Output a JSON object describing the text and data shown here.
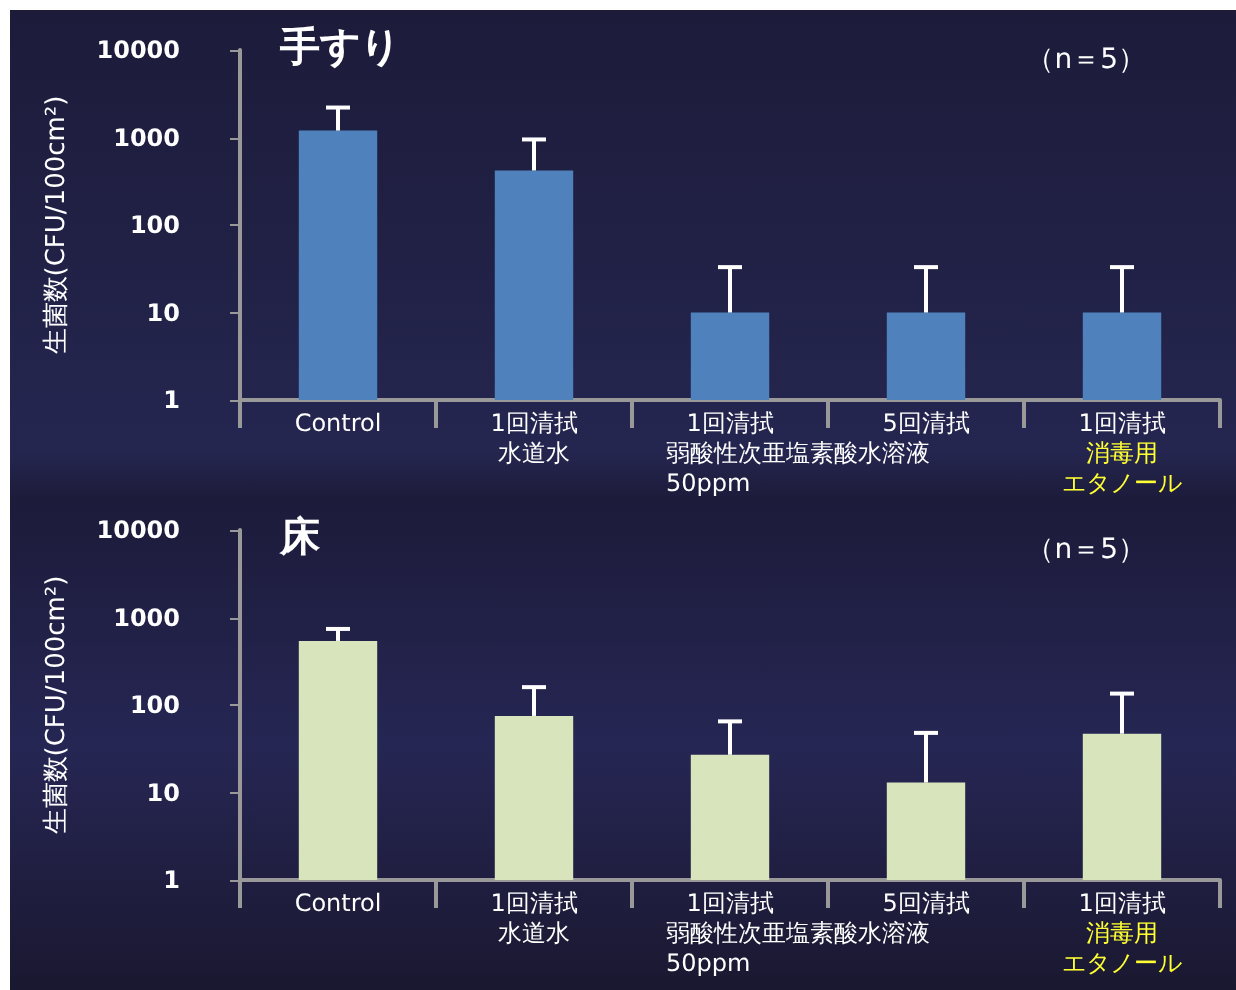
{
  "chart_data": [
    {
      "type": "bar",
      "title": "手すり",
      "ylabel": "生菌数(CFU/100cm²)",
      "categories": [
        "Control",
        "1回清拭",
        "1回清拭",
        "5回清拭",
        "1回清拭"
      ],
      "values": [
        1200,
        420,
        10,
        10,
        10
      ],
      "color": "#4f81bd",
      "errors": [
        [
          1200,
          2200
        ],
        [
          420,
          950
        ],
        [
          10,
          33
        ],
        [
          10,
          33
        ],
        [
          10,
          33
        ]
      ],
      "log": true,
      "ylim": [
        1,
        10000
      ],
      "yticks": [
        1,
        10,
        100,
        1000,
        10000
      ],
      "grid": false,
      "annotations": [
        "（n＝5）",
        "水道水",
        "弱酸性次亜塩素酸水溶液\n50ppm",
        "消毒用",
        "エタノール"
      ]
    },
    {
      "type": "bar",
      "title": "床",
      "ylabel": "生菌数(CFU/100cm²)",
      "categories": [
        "Control",
        "1回清拭",
        "1回清拭",
        "5回清拭",
        "1回清拭"
      ],
      "values": [
        540,
        75,
        27,
        13,
        47
      ],
      "color": "#d7e4bc",
      "errors": [
        [
          540,
          740
        ],
        [
          75,
          160
        ],
        [
          27,
          65
        ],
        [
          13,
          48
        ],
        [
          47,
          135
        ]
      ],
      "log": true,
      "ylim": [
        1,
        10000
      ],
      "yticks": [
        1,
        10,
        100,
        1000,
        10000
      ],
      "grid": false,
      "annotations": [
        "（n＝5）",
        "水道水",
        "弱酸性次亜塩素酸水溶液\n50ppm",
        "消毒用",
        "エタノール"
      ]
    }
  ]
}
